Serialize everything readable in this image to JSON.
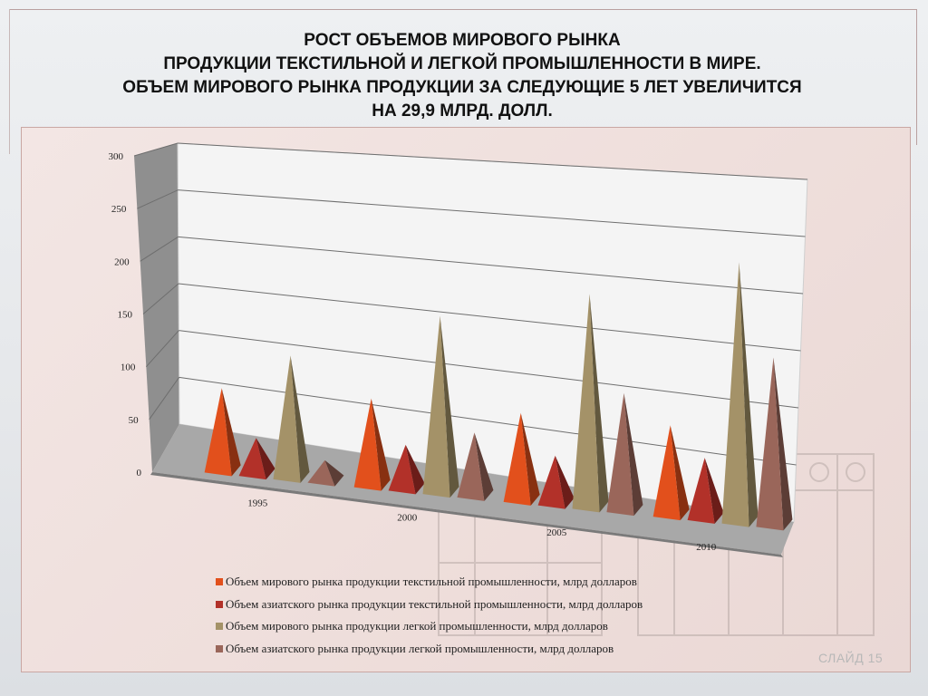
{
  "slide": {
    "title_lines": [
      "РОСТ ОБЪЕМОВ МИРОВОГО РЫНКА",
      "ПРОДУКЦИИ ТЕКСТИЛЬНОЙ И ЛЕГКОЙ ПРОМЫШЛЕННОСТИ  В МИРЕ.",
      "ОБЪЕМ МИРОВОГО РЫНКА ПРОДУКЦИИ ЗА СЛЕДУЮЩИЕ 5 ЛЕТ УВЕЛИЧИТСЯ",
      "НА 29,9 МЛРД. ДОЛЛ."
    ],
    "slide_number": "СЛАЙД 15"
  },
  "chart_data": {
    "type": "bar",
    "style": "3d-pyramid",
    "categories": [
      "1995",
      "2000",
      "2005",
      "2010"
    ],
    "y_ticks": [
      "0",
      "50",
      "100",
      "150",
      "200",
      "250",
      "300"
    ],
    "ylim": [
      0,
      300
    ],
    "grid": true,
    "legend_position": "bottom",
    "series": [
      {
        "name": "Объем мирового рынка продукции текстильной промышленности, млрд долларов",
        "color": "#e2501c",
        "values": [
          80,
          83,
          82,
          83
        ]
      },
      {
        "name": "Объем азиатского рынка продукции текстильной промышленности, млрд долларов",
        "color": "#b23129",
        "values": [
          35,
          42,
          45,
          56
        ]
      },
      {
        "name": "Объем мирового рынка продукции легкой промышленности, млрд долларов",
        "color": "#a49268",
        "values": [
          118,
          168,
          200,
          240
        ]
      },
      {
        "name": "Объем азиатского рынка продукции легкой промышленности, млрд долларов",
        "color": "#9a665a",
        "values": [
          20,
          60,
          110,
          155
        ]
      }
    ]
  }
}
